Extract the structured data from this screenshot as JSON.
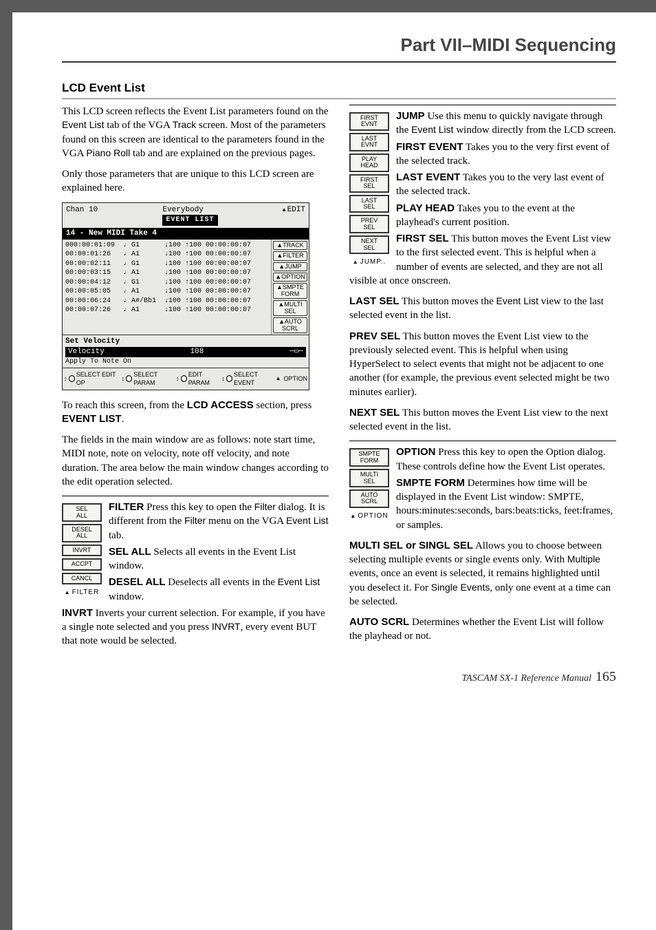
{
  "header": {
    "title": "Part VII–MIDI Sequencing"
  },
  "section": {
    "title": "LCD Event List"
  },
  "intro": {
    "p1a": "This LCD screen reflects the Event List parameters found on the ",
    "p1_evlist": "Event List",
    "p1b": " tab of the VGA ",
    "p1_track": "Track",
    "p1c": " screen. Most of the parameters found on this screen are identical to the parameters found in the VGA ",
    "p1_piano": "Piano Roll",
    "p1d": " tab and are explained on the previous pages.",
    "p2": "Only those parameters that are unique to this LCD screen are explained here."
  },
  "lcd": {
    "chan": "Chan 10",
    "song": "Everybody",
    "titlebar": "EVENT LIST",
    "edit": "EDIT",
    "tracklabel": "14 - New MIDI Take 4",
    "rows": [
      {
        "t": "000:00:01:09",
        "n": "G1",
        "dn": "↓100",
        "up": "↑100",
        "d": "00:00:00:07"
      },
      {
        "t": "00:00:01:26",
        "n": "A1",
        "dn": "↓100",
        "up": "↑100",
        "d": "00:00:00:07"
      },
      {
        "t": "00:00:02:11",
        "n": "G1",
        "dn": "↓100",
        "up": "↑100",
        "d": "00:00:00:07"
      },
      {
        "t": "00:00:03:15",
        "n": "A1",
        "dn": "↓100",
        "up": "↑100",
        "d": "00:00:00:07"
      },
      {
        "t": "00:00:04:12",
        "n": "G1",
        "dn": "↓100",
        "up": "↑100",
        "d": "00:00:00:07"
      },
      {
        "t": "00:00:05:05",
        "n": "A1",
        "dn": "↓100",
        "up": "↑100",
        "d": "00:00:00:07"
      },
      {
        "t": "00:00:06:24",
        "n": "A#/Bb1",
        "dn": "↓100",
        "up": "↑100",
        "d": "00:00:00:07"
      },
      {
        "t": "00:00:07:26",
        "n": "A1",
        "dn": "↓100",
        "up": "↑100",
        "d": "00:00:00:07"
      }
    ],
    "side": [
      "TRACK",
      "FILTER",
      "JUMP",
      "OPTION",
      "SMPTE\nFORM",
      "MULTI\nSEL",
      "AUTO\nSCRL"
    ],
    "setvel_title": "Set Velocity",
    "setvel_l": "Velocity",
    "setvel_v": "108",
    "apply_l": "Apply To",
    "apply_v": "Note On",
    "bottom": [
      "SELECT EDIT OP",
      "SELECT PARAM",
      "EDIT PARAM",
      "SELECT EVENT"
    ],
    "bottom_r": "OPTION"
  },
  "reach": {
    "a": "To reach this screen, from the ",
    "b": "LCD ACCESS",
    "c": " section, press ",
    "d": "EVENT LIST",
    "e": "."
  },
  "fields_p": "The fields in the main window are as follows: note start time, MIDI note, note on velocity, note off velocity, and note duration. The area below the main window changes according to the edit operation selected.",
  "filter": {
    "side": [
      "SEL\nALL",
      "DESEL\nALL",
      "INVRT",
      "ACCPT",
      "CANCL"
    ],
    "side_lbl": "FILTER",
    "FILTER_h": "FILTER",
    "FILTER_a": " Press this key to open the ",
    "FILTER_f1": "Filter",
    "FILTER_b": " dialog. It is different from the ",
    "FILTER_f2": "Filter",
    "FILTER_c": " menu on the VGA ",
    "FILTER_f3": "Event List",
    "FILTER_d": " tab.",
    "SELALL_h": "SEL ALL",
    "SELALL_t": " Selects all events in the Event List window.",
    "DESEL_h": "DESEL ALL",
    "DESEL_a": " Deselects all events in the ",
    "DESEL_f": "Event List",
    "DESEL_b": " window.",
    "INVRT_h": "INVRT",
    "INVRT_a": " Inverts your current selection. For example, if you have a single note selected and you press ",
    "INVRT_f": "INVRT",
    "INVRT_b": ", every event BUT that note would be selected."
  },
  "jump": {
    "side": [
      "FIRST\nEVNT",
      "LAST\nEVNT",
      "PLAY\nHEAD",
      "FIRST\nSEL",
      "LAST\nSEL",
      "PREV\nSEL",
      "NEXT\nSEL"
    ],
    "side_lbl": "JUMP..",
    "JUMP_h": "JUMP",
    "JUMP_a": " Use this menu to quickly navigate through the ",
    "JUMP_f": "Event List",
    "JUMP_b": " window directly from the LCD screen.",
    "FIRSTEV_h": "FIRST EVENT",
    "FIRSTEV_t": " Takes you to the very first event of the selected track.",
    "LASTEV_h": "LAST EVENT",
    "LASTEV_t": " Takes you to the very last event of the selected track.",
    "PLAY_h": "PLAY HEAD",
    "PLAY_t": " Takes you to the event at the playhead's current position.",
    "FIRSTSEL_h": "FIRST SEL",
    "FIRSTSEL_t": " This button moves the Event List view to the first selected event. This is helpful when a number of events are selected, and they are not all visible at once onscreen.",
    "LASTSEL_h": "LAST SEL",
    "LASTSEL_a": " This button moves the ",
    "LASTSEL_f": "Event List",
    "LASTSEL_b": " view to the last selected event in the list.",
    "PREVSEL_h": "PREV SEL",
    "PREVSEL_t": " This button moves the Event List view to the previously selected event. This is helpful when using HyperSelect to select events that might not be adjacent to one another (for example, the previous event selected might be two minutes earlier).",
    "NEXTSEL_h": "NEXT SEL",
    "NEXTSEL_t": " This button moves the Event List view to the next selected event in the list."
  },
  "option": {
    "side": [
      "SMPTE\nFORM",
      "MULTI\nSEL",
      "AUTO\nSCRL"
    ],
    "side_lbl": "OPTION",
    "OPTION_h": "OPTION",
    "OPTION_t": " Press this key to open the Option dialog. These controls define how the Event List operates.",
    "SMPTE_h": "SMPTE FORM",
    "SMPTE_t": " Determines how time will be displayed in the Event List window: SMPTE, hours:minutes:seconds, bars:beats:ticks, feet:frames, or samples.",
    "MULTI_h": "MULTI SEL or SINGL SEL",
    "MULTI_a": " Allows you to choose between selecting multiple events or single events only. With ",
    "MULTI_f1": "Multiple",
    "MULTI_b": " events, once an event is selected, it remains highlighted until you deselect it. For ",
    "MULTI_f2": "Single Events",
    "MULTI_c": ", only one event at a time can be selected.",
    "AUTO_h": "AUTO SCRL",
    "AUTO_t": " Determines whether the Event List will follow the playhead or not."
  },
  "footer": {
    "text": "TASCAM SX-1 Reference Manual",
    "page": "165"
  }
}
